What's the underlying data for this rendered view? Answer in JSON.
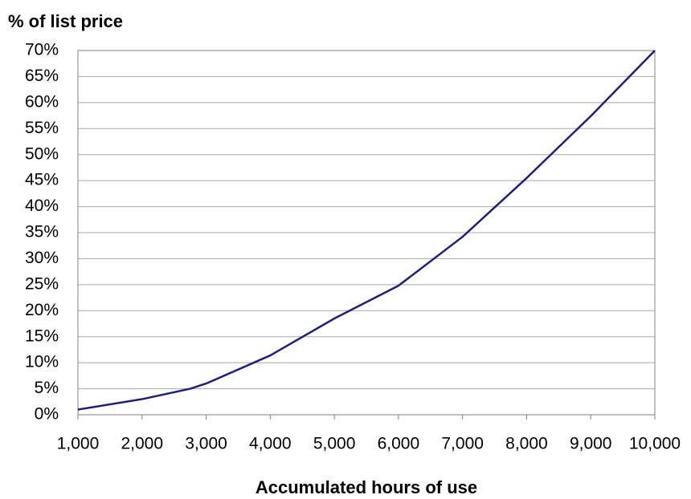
{
  "chart_data": {
    "type": "line",
    "title": "% of list price",
    "x_label": "Accumulated hours of use",
    "x": [
      1000,
      2000,
      2750,
      3000,
      4000,
      5000,
      6000,
      7000,
      8000,
      9000,
      10000
    ],
    "series": [
      {
        "name": "% of list price",
        "color": "#1f1f7a",
        "values": [
          1,
          3,
          5,
          6,
          11.4,
          18.5,
          24.8,
          34.2,
          45.5,
          57.4,
          70
        ]
      }
    ],
    "xlim": [
      1000,
      10000
    ],
    "xticks": [
      {
        "value": 1000,
        "label": "1,000"
      },
      {
        "value": 2000,
        "label": "2,000"
      },
      {
        "value": 3000,
        "label": "3,000"
      },
      {
        "value": 4000,
        "label": "4,000"
      },
      {
        "value": 5000,
        "label": "5,000"
      },
      {
        "value": 6000,
        "label": "6,000"
      },
      {
        "value": 7000,
        "label": "7,000"
      },
      {
        "value": 8000,
        "label": "8,000"
      },
      {
        "value": 9000,
        "label": "9,000"
      },
      {
        "value": 10000,
        "label": "10,000"
      }
    ],
    "ylim": [
      0,
      70
    ],
    "yticks": [
      {
        "value": 0,
        "label": "0%"
      },
      {
        "value": 5,
        "label": "5%"
      },
      {
        "value": 10,
        "label": "10%"
      },
      {
        "value": 15,
        "label": "15%"
      },
      {
        "value": 20,
        "label": "20%"
      },
      {
        "value": 25,
        "label": "25%"
      },
      {
        "value": 30,
        "label": "30%"
      },
      {
        "value": 35,
        "label": "35%"
      },
      {
        "value": 40,
        "label": "40%"
      },
      {
        "value": 45,
        "label": "45%"
      },
      {
        "value": 50,
        "label": "50%"
      },
      {
        "value": 55,
        "label": "55%"
      },
      {
        "value": 60,
        "label": "60%"
      },
      {
        "value": 65,
        "label": "65%"
      },
      {
        "value": 70,
        "label": "70%"
      }
    ],
    "grid": true
  }
}
